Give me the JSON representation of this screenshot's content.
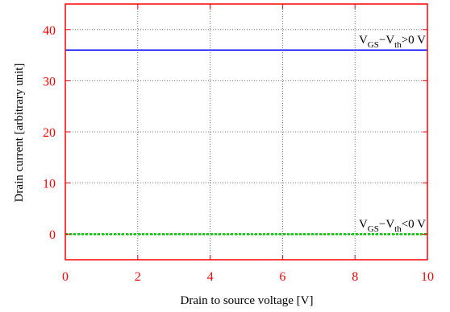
{
  "chart_data": {
    "type": "line",
    "xlabel": "Drain to source voltage [V]",
    "ylabel": "Drain current [arbitrary unit]",
    "xlim": [
      0,
      10
    ],
    "ylim": [
      -5,
      45
    ],
    "xticks": [
      0,
      2,
      4,
      6,
      8,
      10
    ],
    "yticks": [
      0,
      10,
      20,
      30,
      40
    ],
    "grid": true,
    "series": [
      {
        "x": [
          0,
          10
        ],
        "values": [
          36,
          36
        ],
        "color": "#0000ff",
        "style": "solid",
        "annotation": {
          "main1": "V",
          "sub1": "GS",
          "mid": "−V",
          "sub2": "th",
          "tail": ">0 V"
        }
      },
      {
        "x": [
          0,
          10
        ],
        "values": [
          0,
          0
        ],
        "color": "#00cc00",
        "style": "dashed",
        "annotation": {
          "main1": "V",
          "sub1": "GS",
          "mid": "−V",
          "sub2": "th",
          "tail": "<0 V"
        }
      }
    ],
    "colors": {
      "frame": "#ff0000",
      "ticks": "#ff0000",
      "grid": "#555555"
    }
  }
}
